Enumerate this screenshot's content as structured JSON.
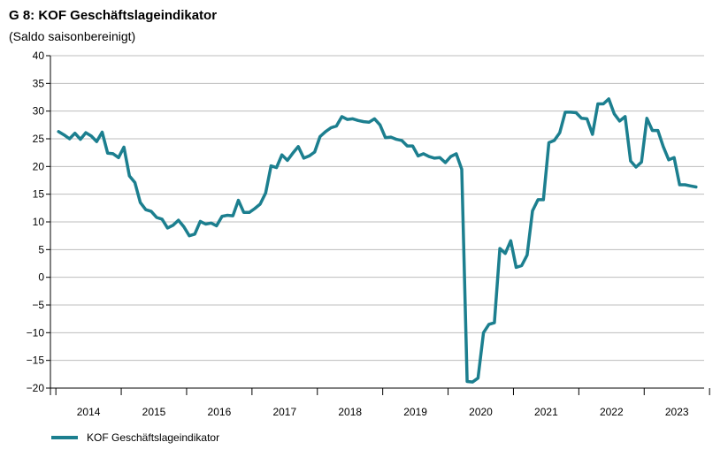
{
  "chart_data": {
    "type": "line",
    "title": "G 8: KOF Geschäftslageindikator",
    "subtitle": "(Saldo saisonbereinigt)",
    "xlabel": "",
    "ylabel": "",
    "ylim": [
      -20,
      40
    ],
    "yticks": [
      40,
      35,
      30,
      25,
      20,
      15,
      10,
      5,
      0,
      -5,
      -10,
      -15,
      -20
    ],
    "ytick_labels": [
      "40",
      "35",
      "30",
      "25",
      "20",
      "15",
      "10",
      "5",
      "0",
      "−5",
      "−10",
      "−15",
      "−20"
    ],
    "year_labels": [
      "2014",
      "2015",
      "2016",
      "2017",
      "2018",
      "2019",
      "2020",
      "2021",
      "2022",
      "2023"
    ],
    "x_range": [
      "2013-12",
      "2023-12"
    ],
    "grid": true,
    "legend_position": "bottom-left",
    "series": [
      {
        "name": "KOF Geschäftslageindikator",
        "color": "#1c7f8f",
        "x": [
          "2014-01",
          "2014-02",
          "2014-03",
          "2014-04",
          "2014-05",
          "2014-06",
          "2014-07",
          "2014-08",
          "2014-09",
          "2014-10",
          "2014-11",
          "2014-12",
          "2015-01",
          "2015-02",
          "2015-03",
          "2015-04",
          "2015-05",
          "2015-06",
          "2015-07",
          "2015-08",
          "2015-09",
          "2015-10",
          "2015-11",
          "2015-12",
          "2016-01",
          "2016-02",
          "2016-03",
          "2016-04",
          "2016-05",
          "2016-06",
          "2016-07",
          "2016-08",
          "2016-09",
          "2016-10",
          "2016-11",
          "2016-12",
          "2017-01",
          "2017-02",
          "2017-03",
          "2017-04",
          "2017-05",
          "2017-06",
          "2017-07",
          "2017-08",
          "2017-09",
          "2017-10",
          "2017-11",
          "2017-12",
          "2018-01",
          "2018-02",
          "2018-03",
          "2018-04",
          "2018-05",
          "2018-06",
          "2018-07",
          "2018-08",
          "2018-09",
          "2018-10",
          "2018-11",
          "2018-12",
          "2019-01",
          "2019-02",
          "2019-03",
          "2019-04",
          "2019-05",
          "2019-06",
          "2019-07",
          "2019-08",
          "2019-09",
          "2019-10",
          "2019-11",
          "2019-12",
          "2020-01",
          "2020-02",
          "2020-03",
          "2020-04",
          "2020-05",
          "2020-06",
          "2020-07",
          "2020-08",
          "2020-09",
          "2020-10",
          "2020-11",
          "2020-12",
          "2021-01",
          "2021-02",
          "2021-03",
          "2021-04",
          "2021-05",
          "2021-06",
          "2021-07",
          "2021-08",
          "2021-09",
          "2021-10",
          "2021-11",
          "2021-12",
          "2022-01",
          "2022-02",
          "2022-03",
          "2022-04",
          "2022-05",
          "2022-06",
          "2022-07",
          "2022-08",
          "2022-09",
          "2022-10",
          "2022-11",
          "2022-12",
          "2023-01",
          "2023-02",
          "2023-03",
          "2023-04",
          "2023-05",
          "2023-06",
          "2023-07",
          "2023-08",
          "2023-09",
          "2023-10"
        ],
        "values": [
          26.3,
          25.7,
          25.0,
          26.0,
          24.9,
          26.1,
          25.5,
          24.5,
          26.2,
          22.4,
          22.3,
          21.6,
          23.5,
          18.3,
          17.1,
          13.5,
          12.2,
          11.9,
          10.8,
          10.5,
          8.9,
          9.4,
          10.3,
          9.1,
          7.5,
          7.8,
          10.1,
          9.6,
          9.8,
          9.3,
          11.0,
          11.2,
          11.1,
          13.9,
          11.7,
          11.7,
          12.4,
          13.2,
          15.2,
          20.1,
          19.8,
          22.1,
          21.1,
          22.4,
          23.6,
          21.5,
          21.9,
          22.6,
          25.4,
          26.3,
          27.0,
          27.3,
          29.0,
          28.5,
          28.6,
          28.3,
          28.1,
          28.0,
          28.6,
          27.5,
          25.2,
          25.3,
          24.9,
          24.7,
          23.7,
          23.7,
          21.9,
          22.3,
          21.8,
          21.5,
          21.6,
          20.7,
          21.8,
          22.3,
          19.5,
          -18.8,
          -18.9,
          -18.2,
          -10.0,
          -8.5,
          -8.2,
          5.2,
          4.3,
          6.6,
          1.8,
          2.1,
          4.0,
          12.0,
          14.0,
          14.0,
          24.3,
          24.7,
          26.1,
          29.8,
          29.8,
          29.7,
          28.7,
          28.6,
          25.8,
          31.3,
          31.3,
          32.2,
          29.5,
          28.2,
          29.0,
          21.0,
          19.9,
          20.8,
          28.7,
          26.5,
          26.5,
          23.6,
          21.2,
          21.6,
          16.7,
          16.7,
          16.5,
          16.3
        ]
      }
    ]
  }
}
